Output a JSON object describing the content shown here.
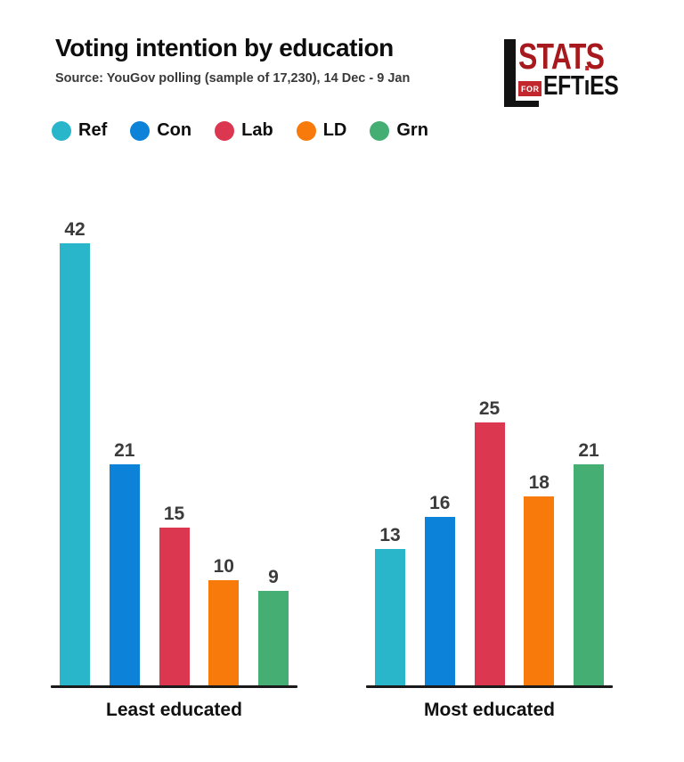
{
  "header": {
    "title": "Voting intention by education",
    "source": "Source: YouGov polling (sample of 17,230), 14 Dec - 9 Jan"
  },
  "logo": {
    "word1": "STATS",
    "for_label": "FOR",
    "word2_pre": "EFT",
    "word2_i": "ı",
    "word2_post": "ES",
    "text_red": "#A8191E",
    "badge_red": "#C1272D",
    "black": "#121212"
  },
  "chart_data": {
    "type": "bar",
    "title": "Voting intention by education",
    "categories": [
      "Least educated",
      "Most educated"
    ],
    "series": [
      {
        "name": "Ref",
        "color": "#29B6CB",
        "values": [
          42,
          13
        ]
      },
      {
        "name": "Con",
        "color": "#0C82D9",
        "values": [
          21,
          16
        ]
      },
      {
        "name": "Lab",
        "color": "#DC3750",
        "values": [
          15,
          25
        ]
      },
      {
        "name": "LD",
        "color": "#F87A0B",
        "values": [
          10,
          18
        ]
      },
      {
        "name": "Grn",
        "color": "#45AE73",
        "values": [
          9,
          21
        ]
      }
    ],
    "ylim": [
      0,
      45
    ],
    "grid": false,
    "legend_position": "top",
    "value_labels": true,
    "axis_color": "#1a1a1a",
    "value_label_color": "#3b3b3b"
  }
}
